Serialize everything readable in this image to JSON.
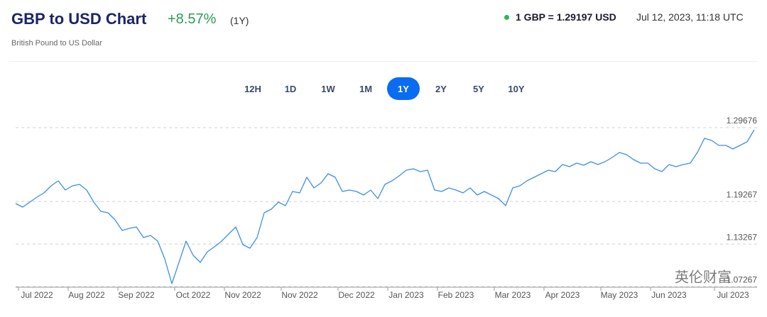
{
  "header": {
    "title": "GBP to USD Chart",
    "change": "+8.57%",
    "period": "(1Y)",
    "subtitle": "British Pound to US Dollar",
    "rate": "1 GBP = 1.29197 USD",
    "timestamp": "Jul 12, 2023, 11:18 UTC"
  },
  "ranges": [
    "12H",
    "1D",
    "1W",
    "1M",
    "1Y",
    "2Y",
    "5Y",
    "10Y"
  ],
  "active_range": 4,
  "watermark": "英伦财富",
  "chart_data": {
    "type": "line",
    "color": "#3d8fe6",
    "grid": true,
    "categories": [
      null,
      null,
      null,
      "Jul 2022",
      null,
      null,
      null,
      null,
      null,
      null,
      "Aug 2022",
      null,
      null,
      null,
      null,
      null,
      null,
      "Sep 2022",
      null,
      null,
      null,
      null,
      null,
      null,
      null,
      "Oct 2022",
      null,
      null,
      null,
      null,
      null,
      null,
      "Nov 2022",
      null,
      null,
      null,
      null,
      null,
      null,
      null,
      "Nov 2022",
      null,
      null,
      null,
      null,
      null,
      null,
      null,
      "Dec 2022",
      null,
      null,
      null,
      null,
      null,
      null,
      "Jan 2023",
      null,
      null,
      null,
      null,
      null,
      null,
      "Feb 2023",
      null,
      null,
      null,
      null,
      null,
      null,
      null,
      "Mar 2023",
      null,
      null,
      null,
      null,
      null,
      null,
      "Apr 2023",
      null,
      null,
      null,
      null,
      null,
      null,
      null,
      "May 2023",
      null,
      null,
      null,
      null,
      null,
      null,
      "Jun 2023",
      null,
      null,
      null,
      null,
      null,
      null,
      null,
      null,
      "Jul 2023",
      null,
      null,
      null
    ],
    "values": [
      1.1898,
      1.1848,
      1.1918,
      1.1988,
      1.2048,
      1.2148,
      1.2218,
      1.2088,
      1.2148,
      1.2168,
      1.2088,
      1.1918,
      1.1788,
      1.1768,
      1.1668,
      1.1518,
      1.1548,
      1.1568,
      1.1418,
      1.1448,
      1.1368,
      1.1118,
      1.0768,
      1.1068,
      1.1368,
      1.1168,
      1.1068,
      1.1218,
      1.1288,
      1.1368,
      1.1468,
      1.1568,
      1.1318,
      1.1268,
      1.1418,
      1.1768,
      1.1818,
      1.1918,
      1.1868,
      1.2068,
      1.2048,
      1.2268,
      1.2118,
      1.2188,
      1.2318,
      1.2268,
      1.2068,
      1.2088,
      1.2068,
      1.2018,
      1.2088,
      1.1968,
      1.2168,
      1.2218,
      1.2288,
      1.2368,
      1.2388,
      1.2348,
      1.2368,
      1.2088,
      1.2068,
      1.2118,
      1.2088,
      1.2048,
      1.2118,
      1.2018,
      1.2068,
      1.2018,
      1.1968,
      1.1868,
      1.2118,
      1.2148,
      1.2218,
      1.2268,
      1.2318,
      1.2368,
      1.2348,
      1.2448,
      1.2418,
      1.2468,
      1.2438,
      1.2488,
      1.2448,
      1.2488,
      1.2548,
      1.2618,
      1.2588,
      1.2518,
      1.2468,
      1.2468,
      1.2388,
      1.2348,
      1.2448,
      1.2418,
      1.2448,
      1.2468,
      1.2618,
      1.2818,
      1.2788,
      1.2718,
      1.2718,
      1.2668,
      1.2718,
      1.2768,
      1.2938
    ],
    "ylim": [
      1.0718,
      1.3168
    ],
    "yticks": [
      1.29676,
      1.19267,
      1.13267,
      1.07267
    ]
  }
}
